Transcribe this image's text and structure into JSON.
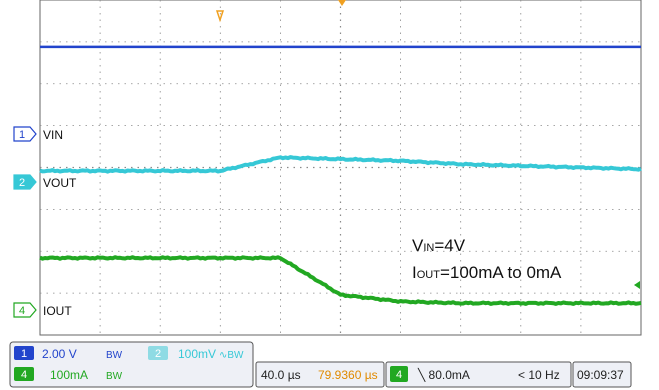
{
  "chart_data": {
    "type": "line",
    "title": "",
    "xlabel": "",
    "ylabel": "",
    "grid": true,
    "x_unit": "us",
    "x": [
      0,
      40,
      80,
      120,
      160,
      200,
      240,
      280,
      320,
      360,
      400
    ],
    "series": [
      {
        "name": "VIN",
        "values": [
          8.6,
          8.6,
          8.6,
          8.6,
          8.6,
          8.6,
          8.6,
          8.6,
          8.6,
          8.6,
          8.6
        ]
      },
      {
        "name": "VOUT",
        "values": [
          4.9,
          4.9,
          4.9,
          4.9,
          5.3,
          5.25,
          5.2,
          5.1,
          5.05,
          5.0,
          4.95
        ]
      },
      {
        "name": "IOUT",
        "values": [
          2.3,
          2.3,
          2.3,
          2.3,
          2.3,
          1.2,
          1.0,
          0.95,
          0.95,
          0.95,
          0.95
        ]
      }
    ],
    "channel_markers": [
      {
        "num": "1",
        "label": "VIN",
        "color": "#2244cc"
      },
      {
        "num": "2",
        "label": "VOUT",
        "color": "#36c8d6"
      },
      {
        "num": "4",
        "label": "IOUT",
        "color": "#22a822"
      }
    ],
    "annotation_lines": [
      {
        "main": "V",
        "sub": "IN",
        "rest": "=4V"
      },
      {
        "main": "I",
        "sub": "OUT",
        "rest": "=100mA to 0mA"
      }
    ]
  },
  "status_bar": {
    "ch1_num": "1",
    "ch1_scale": "2.00 V",
    "ch1_bw": "BW",
    "ch2_num": "2",
    "ch2_scale": "100mV",
    "ch2_extra": "∿BW",
    "ch4_num": "4",
    "ch4_scale": "100mA",
    "ch4_bw": "BW",
    "timebase": "40.0 µs",
    "trigger_pos": "79.9360 µs",
    "trig_ch_num": "4",
    "trig_level": "╲ 80.0mA",
    "freq": "< 10 Hz",
    "clock": "09:09:37"
  },
  "colors": {
    "ch1": "#2244cc",
    "ch2": "#36c8d6",
    "ch4": "#22a822",
    "trigger_marker": "#f0a020",
    "grid": "#8a8a8a"
  }
}
